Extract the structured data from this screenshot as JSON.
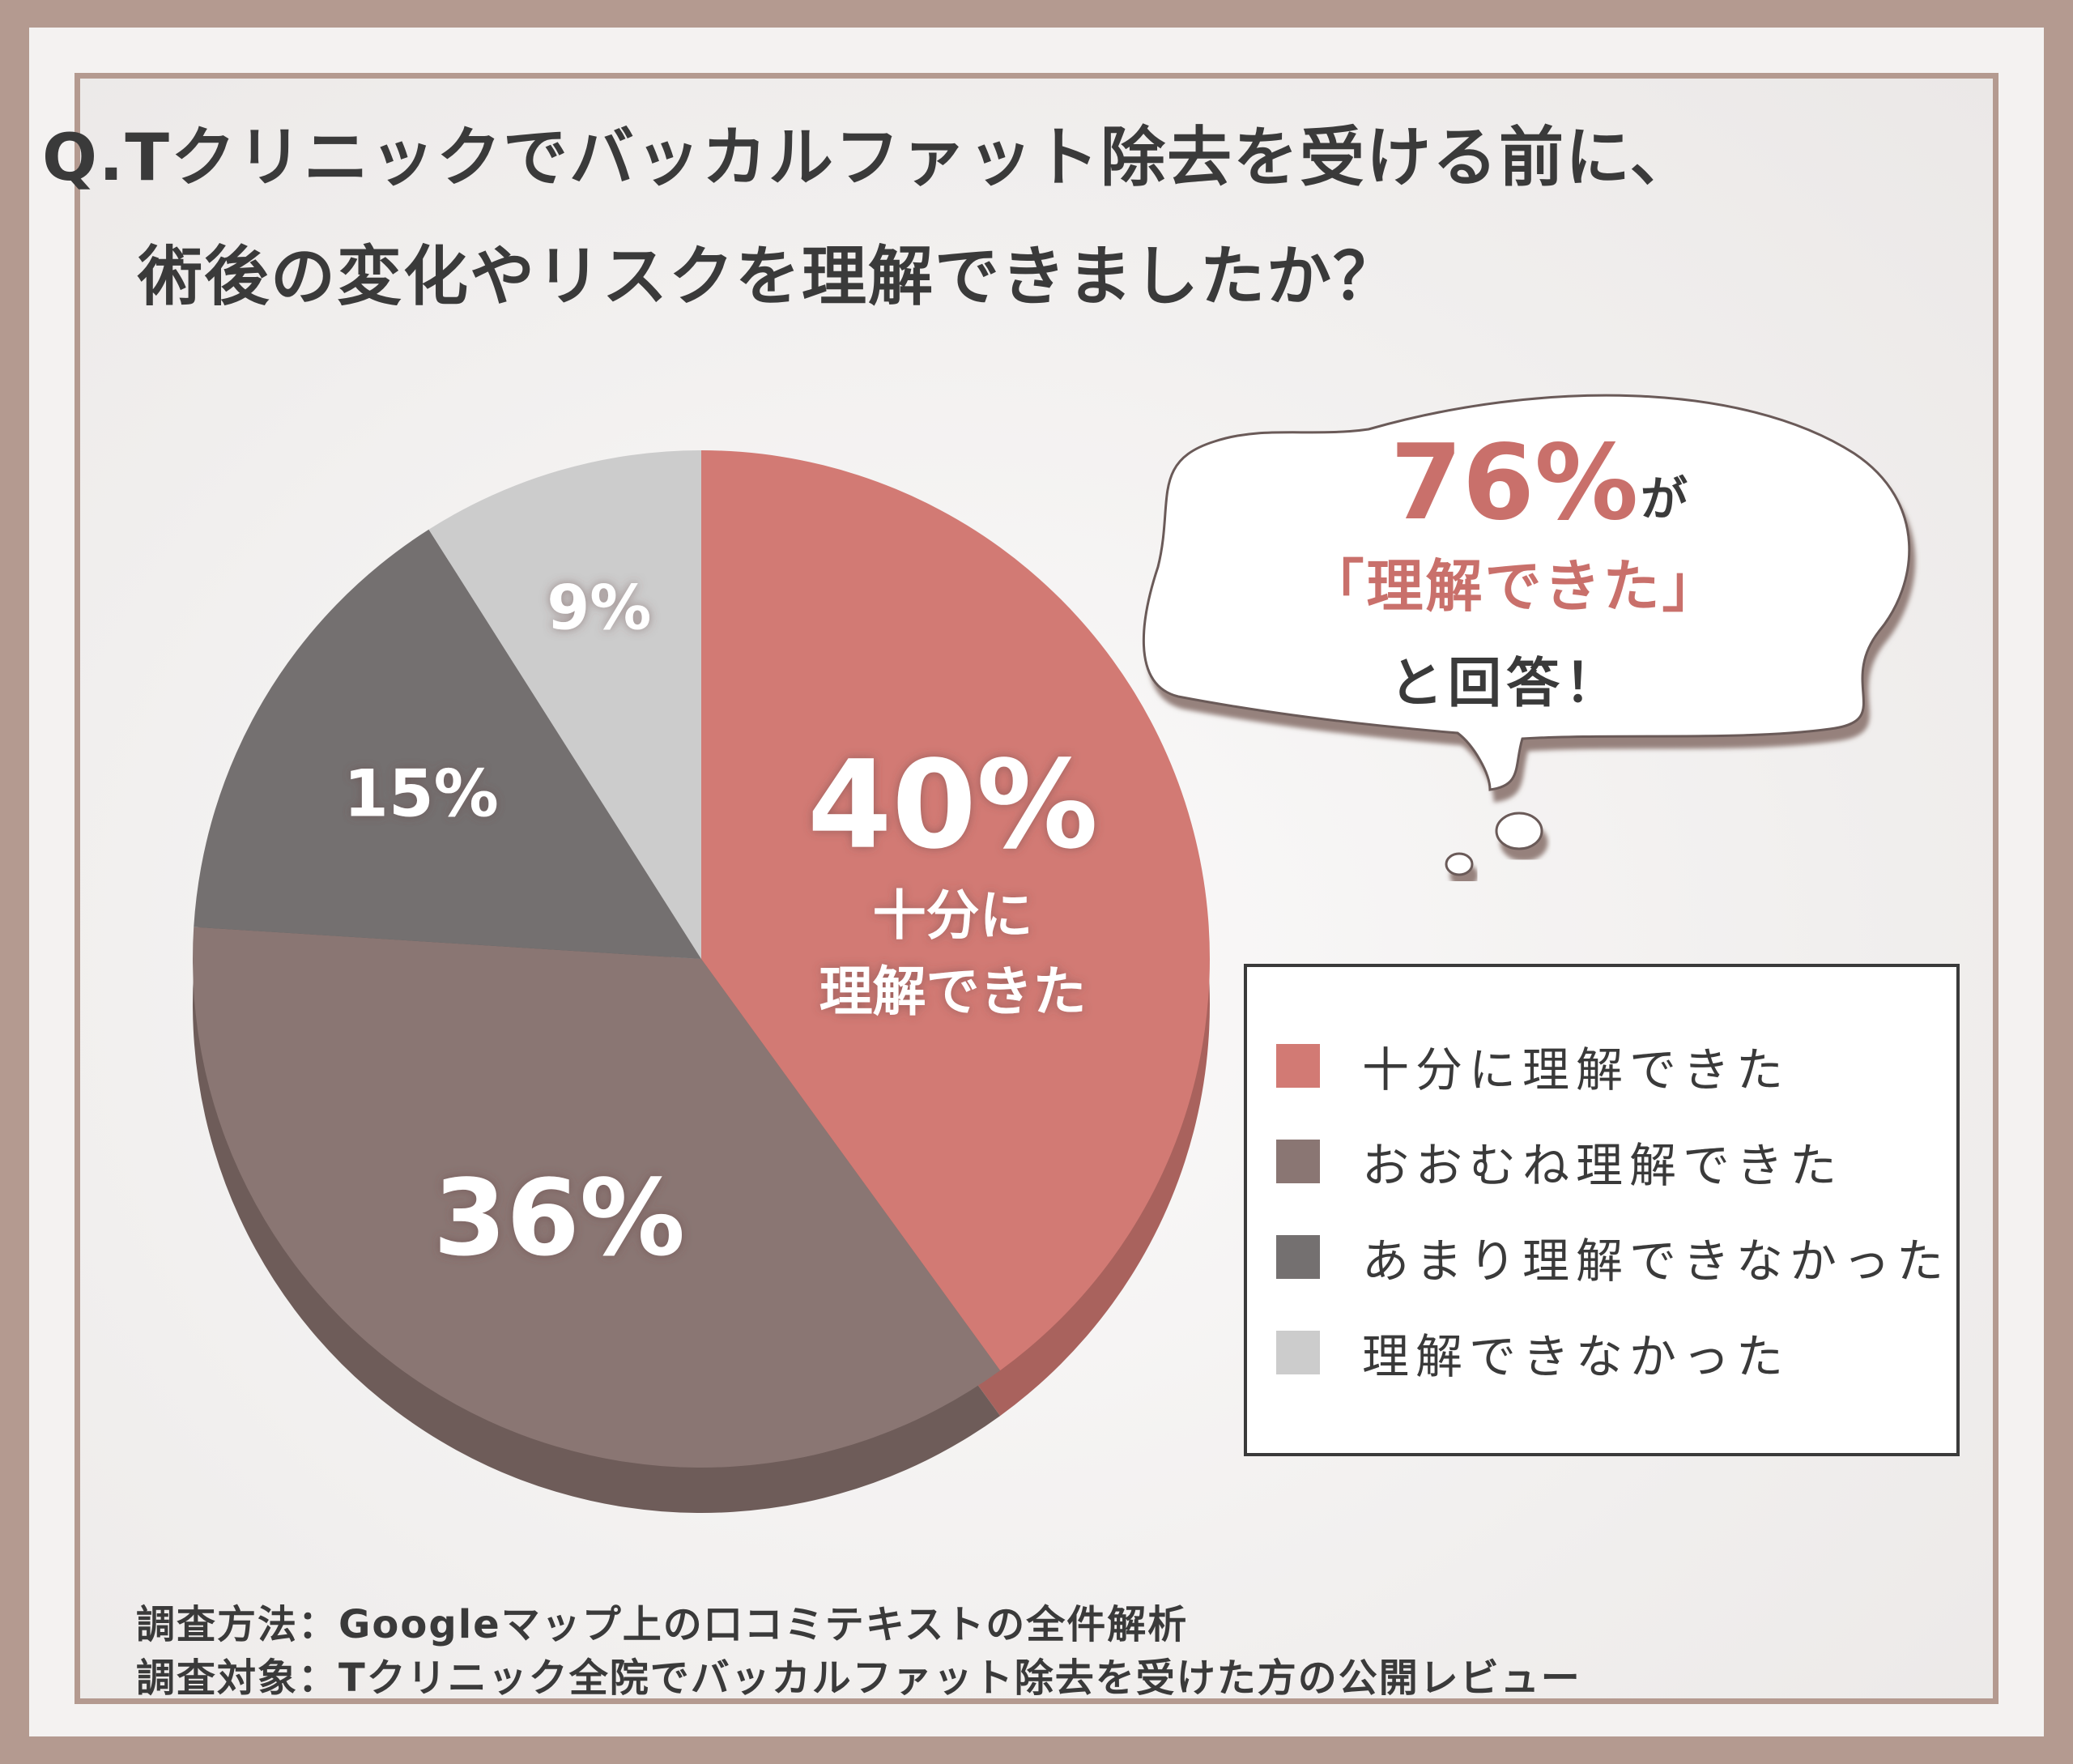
{
  "title": {
    "line1": "Q.Tクリニックでバッカルファット除去を受ける前に、",
    "line2": "術後の変化やリスクを理解できましたか？"
  },
  "callout": {
    "percent": "76%",
    "particle": "が",
    "quote": "「理解できた」",
    "closing": "と回答！",
    "color": "#c9706b"
  },
  "chart_data": {
    "type": "pie",
    "title": "Q.Tクリニックでバッカルファット除去を受ける前に、術後の変化やリスクを理解できましたか？",
    "slices": [
      {
        "name": "十分に理解できた",
        "value": 40,
        "label": "40%",
        "sublabel_line1": "十分に",
        "sublabel_line2": "理解できた",
        "color": "#d27a74",
        "edge": "#a9625d"
      },
      {
        "name": "おおむね理解できた",
        "value": 36,
        "label": "36%",
        "color": "#8a7673",
        "edge": "#6e5c59"
      },
      {
        "name": "あまり理解できなかった",
        "value": 15,
        "label": "15%",
        "color": "#747070",
        "edge": "#5a5656"
      },
      {
        "name": "理解できなかった",
        "value": 9,
        "label": "9%",
        "color": "#cccccc",
        "edge": "#aaaaaa"
      }
    ],
    "start": "12 o'clock",
    "direction": "clockwise",
    "legend_position": "right"
  },
  "legend": {
    "items": [
      {
        "label": "十分に理解できた",
        "color": "#d27a74"
      },
      {
        "label": "おおむね理解できた",
        "color": "#8a7673"
      },
      {
        "label": "あまり理解できなかった",
        "color": "#747070"
      },
      {
        "label": "理解できなかった",
        "color": "#cccccc"
      }
    ]
  },
  "footer": {
    "method": "調査方法：Googleマップ上の口コミテキストの全件解析",
    "target": "調査対象：Tクリニック全院でバッカルファット除去を受けた方の公開レビュー"
  }
}
